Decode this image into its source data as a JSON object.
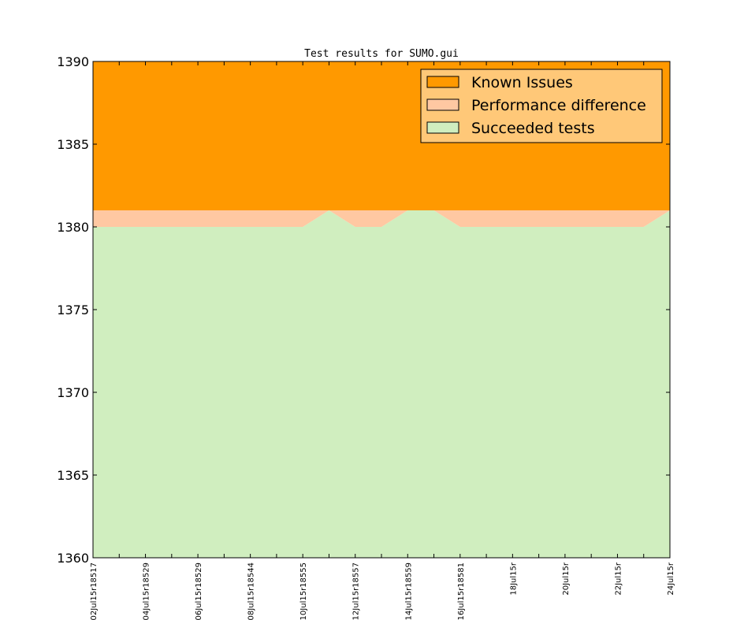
{
  "chart_data": {
    "type": "area",
    "title": "Test results for SUMO.gui",
    "xlabel": "",
    "ylabel": "",
    "ylim": [
      1360,
      1390
    ],
    "yticks": [
      1360,
      1365,
      1370,
      1375,
      1380,
      1385,
      1390
    ],
    "x_tick_labels": [
      "02Jul15r18517",
      "",
      "04Jul15r18529",
      "",
      "06Jul15r18529",
      "",
      "08Jul15r18544",
      "",
      "10Jul15r18555",
      "",
      "12Jul15r18557",
      "",
      "14Jul15r18559",
      "",
      "16Jul15r18581",
      "",
      "18Jul15r",
      "",
      "20Jul15r",
      "",
      "22Jul15r",
      "",
      "24Jul15r"
    ],
    "grid": false,
    "legend_position": "top-right",
    "series": [
      {
        "name": "Succeeded tests",
        "color": "#d0eebf",
        "values": [
          1380,
          1380,
          1380,
          1380,
          1380,
          1380,
          1380,
          1380,
          1380,
          1381,
          1380,
          1380,
          1381,
          1381,
          1380,
          1380,
          1380,
          1380,
          1380,
          1380,
          1380,
          1380,
          1381
        ]
      },
      {
        "name": "Performance difference",
        "color": "#ffc8a2",
        "values": [
          1381,
          1381,
          1381,
          1381,
          1381,
          1381,
          1381,
          1381,
          1381,
          1381,
          1381,
          1381,
          1381,
          1381,
          1381,
          1381,
          1381,
          1381,
          1381,
          1381,
          1381,
          1381,
          1381
        ]
      },
      {
        "name": "Known Issues",
        "color": "#ff9900",
        "values": [
          1390,
          1390,
          1390,
          1390,
          1390,
          1390,
          1390,
          1390,
          1390,
          1390,
          1390,
          1390,
          1390,
          1390,
          1390,
          1390,
          1390,
          1390,
          1390,
          1390,
          1390,
          1390,
          1390
        ]
      }
    ],
    "legend": {
      "background": "#ffc878",
      "entries": [
        {
          "label": "Known Issues",
          "color": "#ff9900"
        },
        {
          "label": "Performance difference",
          "color": "#ffc8a2"
        },
        {
          "label": "Succeeded tests",
          "color": "#d0eebf"
        }
      ]
    }
  }
}
